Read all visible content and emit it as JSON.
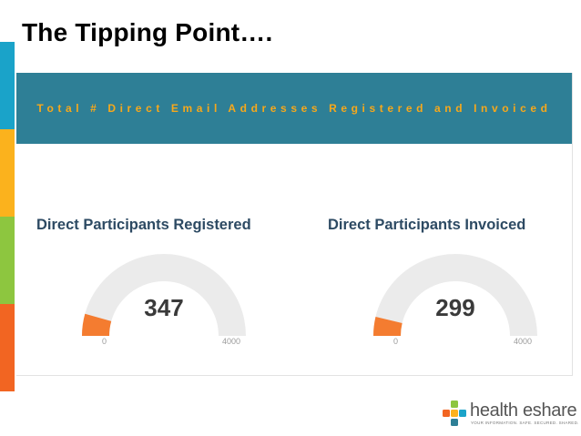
{
  "slide": {
    "title": "The Tipping Point…."
  },
  "banner": {
    "text": "Total # Direct Email Addresses Registered and Invoiced"
  },
  "gauges": [
    {
      "title": "Direct Participants Registered",
      "value": "347",
      "min": "0",
      "max": "4000",
      "fraction": 0.08675
    },
    {
      "title": "Direct Participants Invoiced",
      "value": "299",
      "min": "0",
      "max": "4000",
      "fraction": 0.07475
    }
  ],
  "logo": {
    "name": "health eshare",
    "tagline": "YOUR INFORMATION. SAFE. SECURED. SHARED."
  },
  "colors": {
    "banner_bg": "#2e7f96",
    "banner_text": "#f7a81b",
    "gauge_track": "#ebebeb",
    "gauge_fill": "#f47c30",
    "side_blue": "#1aa3c9",
    "side_yellow": "#fbb21d",
    "side_green": "#8dc63f",
    "side_orange": "#f26522"
  }
}
